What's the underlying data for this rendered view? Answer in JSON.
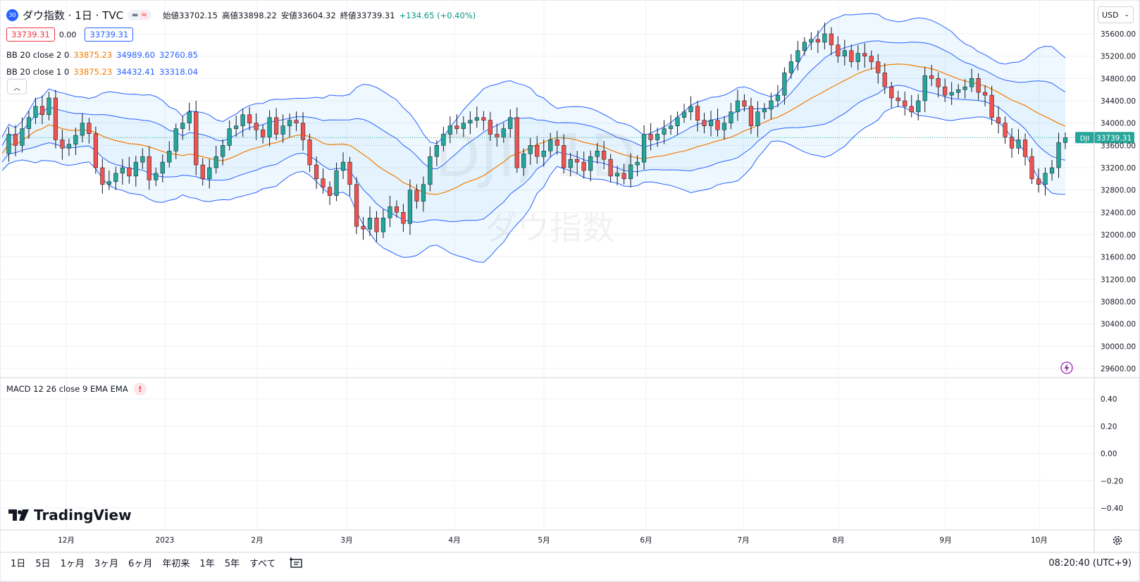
{
  "header": {
    "symbol_badge": "30",
    "title": "ダウ指数 · 1日 · TVC",
    "ohlc": [
      {
        "label": "始値",
        "value": "33702.15"
      },
      {
        "label": "高値",
        "value": "33898.22"
      },
      {
        "label": "安値",
        "value": "33604.32"
      },
      {
        "label": "終値",
        "value": "33739.31"
      }
    ],
    "change": "+134.65 (+0.40%)",
    "bid": "33739.31",
    "spread": "0.00",
    "ask": "33739.31"
  },
  "indicators": [
    {
      "name": "BB 20 close 2 0",
      "basis": "33875.23",
      "upper": "34989.60",
      "lower": "32760.85"
    },
    {
      "name": "BB 20 close 1 0",
      "basis": "33875.23",
      "upper": "34432.41",
      "lower": "33318.04"
    }
  ],
  "macd_label": "MACD 12 26 close 9 EMA EMA",
  "macd_warning": "!",
  "currency": "USD",
  "watermark": {
    "symbol": "DJI, 1D",
    "name": "ダウ指数"
  },
  "price_tag": {
    "ticker": "DJI",
    "value": "33739.31"
  },
  "logo_text": "TradingView",
  "timeframes": [
    "1日",
    "5日",
    "1ヶ月",
    "3ヶ月",
    "6ヶ月",
    "年初来",
    "1年",
    "5年",
    "すべて"
  ],
  "clock": "08:20:40 (UTC+9)",
  "colors": {
    "up": "#26a69a",
    "down": "#ef5350",
    "basis": "#f57c00",
    "bands": "#2962ff",
    "accent": "#2962ff"
  },
  "icons": [
    "collapse-icon",
    "chevron-down-icon",
    "lightning-icon",
    "gear-icon",
    "replay-icon",
    "tradingview-logo-icon"
  ],
  "chart_data": {
    "type": "candlestick",
    "price_axis": [
      "35600.00",
      "35200.00",
      "34800.00",
      "34400.00",
      "34000.00",
      "33600.00",
      "33200.00",
      "32800.00",
      "32400.00",
      "32000.00",
      "31600.00",
      "31200.00",
      "30800.00",
      "30400.00",
      "30000.00",
      "29600.00"
    ],
    "macd_axis": [
      "0.40",
      "0.20",
      "0.00",
      "−0.20",
      "−0.40"
    ],
    "time_axis": [
      "12月",
      "2023",
      "2月",
      "3月",
      "4月",
      "5月",
      "6月",
      "7月",
      "8月",
      "9月",
      "10月"
    ],
    "closes": [
      33450,
      33800,
      33600,
      33900,
      34100,
      34300,
      34150,
      34450,
      33700,
      33550,
      33620,
      33780,
      34000,
      33810,
      33200,
      32900,
      32950,
      33100,
      33200,
      33050,
      33300,
      33400,
      32980,
      33100,
      33300,
      33500,
      33900,
      34000,
      34200,
      33250,
      33000,
      33200,
      33400,
      33600,
      33900,
      33950,
      34150,
      34000,
      33880,
      33750,
      34100,
      33800,
      33950,
      34050,
      34000,
      33700,
      33250,
      33000,
      32850,
      32700,
      33150,
      33300,
      32900,
      32150,
      32100,
      32300,
      32050,
      32300,
      32500,
      32400,
      32200,
      32800,
      32600,
      32900,
      33400,
      33600,
      33800,
      33950,
      33900,
      34000,
      34050,
      34100,
      34050,
      33800,
      33750,
      33900,
      34100,
      33200,
      33450,
      33600,
      33400,
      33500,
      33700,
      33600,
      33200,
      33350,
      33300,
      33150,
      33400,
      33500,
      33350,
      33050,
      33100,
      33000,
      33250,
      33300,
      33800,
      33700,
      33800,
      33900,
      33950,
      34100,
      34200,
      34300,
      34050,
      33950,
      34050,
      33880,
      34000,
      34200,
      34400,
      34300,
      33950,
      34200,
      34250,
      34400,
      34500,
      34900,
      35100,
      35300,
      35450,
      35500,
      35450,
      35600,
      35400,
      35200,
      35300,
      35100,
      35250,
      35200,
      35100,
      34900,
      34650,
      34450,
      34400,
      34300,
      34200,
      34400,
      34850,
      34800,
      34650,
      34500,
      34550,
      34600,
      34650,
      34800,
      34550,
      34500,
      34100,
      34000,
      33750,
      33550,
      33700,
      33400,
      33000,
      32900,
      33100,
      33200,
      33650,
      33739
    ]
  }
}
